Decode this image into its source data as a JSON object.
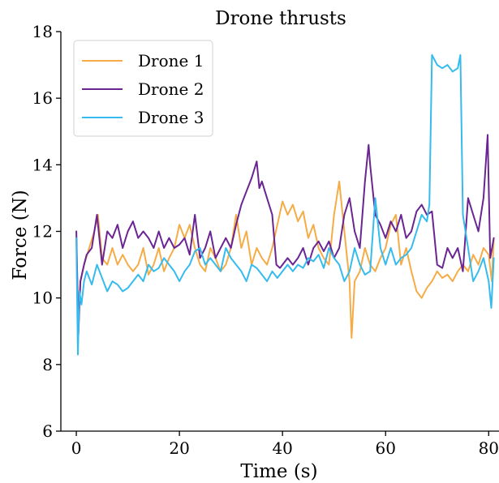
{
  "chart_data": {
    "type": "line",
    "title": "Drone thrusts",
    "xlabel": "Time (s)",
    "ylabel": "Force (N)",
    "xlim": [
      -3,
      82
    ],
    "ylim": [
      6,
      18
    ],
    "xticks": [
      0,
      20,
      40,
      60,
      80
    ],
    "yticks": [
      6,
      8,
      10,
      12,
      14,
      16,
      18
    ],
    "xtick_labels": [
      "0",
      "20",
      "40",
      "60",
      "80"
    ],
    "ytick_labels": [
      "6",
      "8",
      "10",
      "12",
      "14",
      "16",
      "18"
    ],
    "grid": false,
    "legend_position": "upper-left",
    "series": [
      {
        "name": "Drone 1",
        "color": "#f5ac46",
        "x": [
          0,
          0.4,
          0.8,
          1.5,
          2.5,
          3.5,
          4.2,
          5,
          6,
          7,
          8,
          9,
          10,
          11,
          12,
          13,
          14,
          15,
          16,
          17,
          18,
          19,
          20,
          21,
          22,
          23,
          24,
          25,
          26,
          27,
          28,
          29,
          30,
          31,
          32,
          33,
          34,
          35,
          36,
          37,
          38,
          39,
          40,
          41,
          42,
          43,
          44,
          45,
          46,
          47,
          48,
          49,
          50,
          51,
          52,
          53,
          53.4,
          54,
          55,
          56,
          57,
          58,
          59,
          60,
          61,
          62,
          63,
          64,
          65,
          66,
          67,
          68,
          69,
          70,
          71,
          72,
          73,
          74,
          75,
          76,
          77,
          78,
          79,
          80,
          80.6,
          81
        ],
        "values": [
          11.8,
          9.0,
          10.5,
          11.0,
          11.5,
          12.0,
          12.5,
          11.2,
          11.0,
          11.5,
          11.0,
          11.3,
          11.0,
          10.8,
          11.0,
          11.5,
          10.7,
          11.0,
          11.5,
          10.8,
          11.2,
          11.5,
          12.2,
          11.8,
          12.2,
          11.5,
          11.0,
          10.8,
          11.5,
          11.2,
          10.8,
          11.0,
          11.5,
          12.5,
          11.5,
          12.0,
          11.0,
          11.5,
          11.2,
          11.0,
          11.5,
          12.2,
          12.9,
          12.5,
          12.8,
          12.3,
          12.6,
          11.8,
          12.2,
          11.5,
          11.2,
          11.0,
          12.5,
          13.5,
          12.0,
          10.5,
          8.8,
          10.5,
          10.8,
          11.5,
          11.0,
          10.8,
          11.2,
          11.5,
          12.2,
          12.5,
          11.0,
          11.5,
          10.8,
          10.2,
          10.0,
          10.3,
          10.5,
          10.8,
          10.6,
          10.7,
          10.5,
          10.8,
          11.0,
          10.8,
          11.3,
          11.0,
          11.5,
          11.3,
          10.5,
          11.8
        ]
      },
      {
        "name": "Drone 2",
        "color": "#6a2593",
        "x": [
          0,
          0.4,
          0.8,
          1.5,
          2,
          3,
          4,
          5,
          6,
          7,
          8,
          9,
          10,
          11,
          12,
          13,
          14,
          15,
          16,
          17,
          18,
          19,
          20,
          21,
          22,
          23,
          24,
          25,
          26,
          27,
          28,
          29,
          30,
          31,
          32,
          33,
          34,
          35,
          35.5,
          36,
          37,
          38,
          38.8,
          39.5,
          40,
          41,
          42,
          43,
          44,
          45,
          46,
          47,
          48,
          49,
          50,
          51,
          52,
          53,
          54,
          55,
          56,
          56.7,
          57,
          58,
          59,
          60,
          61,
          62,
          63,
          64,
          65,
          66,
          67,
          68,
          69,
          70,
          71,
          72,
          73,
          74,
          75,
          76,
          77,
          78,
          79,
          79.8,
          80.3,
          81
        ],
        "values": [
          12.0,
          8.9,
          10.5,
          11.0,
          11.3,
          11.5,
          12.5,
          11.0,
          12.0,
          11.8,
          12.2,
          11.5,
          12.0,
          12.3,
          11.8,
          12.0,
          11.8,
          11.5,
          12.0,
          11.5,
          11.8,
          11.5,
          11.6,
          11.8,
          11.3,
          12.5,
          11.2,
          11.5,
          12.0,
          11.2,
          11.5,
          11.8,
          11.5,
          12.2,
          12.8,
          13.2,
          13.6,
          14.1,
          13.3,
          13.5,
          13.0,
          12.5,
          11.0,
          10.9,
          11.0,
          11.2,
          11.0,
          11.2,
          11.5,
          11.0,
          11.5,
          11.7,
          11.4,
          11.7,
          11.2,
          11.5,
          12.5,
          13.0,
          12.0,
          11.5,
          13.5,
          14.6,
          14.0,
          12.5,
          12.2,
          11.8,
          12.3,
          12.0,
          12.5,
          11.8,
          12.0,
          12.6,
          12.8,
          12.5,
          12.6,
          11.0,
          10.9,
          11.5,
          11.2,
          11.5,
          10.8,
          13.0,
          12.5,
          12.0,
          13.0,
          14.9,
          11.2,
          11.8
        ]
      },
      {
        "name": "Drone 3",
        "color": "#35bbee",
        "x": [
          0,
          0.3,
          0.6,
          1,
          1.5,
          2,
          3,
          4,
          5,
          6,
          7,
          8,
          9,
          10,
          11,
          12,
          13,
          14,
          15,
          16,
          17,
          18,
          19,
          20,
          21,
          22,
          23,
          24,
          25,
          26,
          27,
          28,
          29,
          30,
          31,
          32,
          33,
          34,
          35,
          36,
          37,
          38,
          39,
          40,
          41,
          42,
          43,
          44,
          45,
          46,
          47,
          48,
          49,
          50,
          51,
          52,
          53,
          54,
          55,
          56,
          57,
          58,
          59,
          60,
          61,
          62,
          63,
          64,
          65,
          66,
          67,
          68,
          68.5,
          69,
          70,
          71,
          72,
          73,
          74,
          74.5,
          75,
          76,
          77,
          78,
          79,
          80,
          80.5,
          81
        ],
        "values": [
          11.8,
          8.3,
          10.2,
          9.8,
          10.5,
          10.8,
          10.4,
          11.0,
          10.6,
          10.2,
          10.5,
          10.4,
          10.2,
          10.3,
          10.5,
          10.7,
          10.5,
          11.0,
          10.8,
          10.9,
          11.2,
          11.0,
          10.8,
          10.5,
          10.8,
          11.0,
          11.4,
          11.5,
          11.0,
          11.2,
          11.0,
          10.8,
          11.5,
          11.2,
          11.0,
          10.8,
          10.5,
          11.0,
          10.9,
          10.7,
          10.5,
          10.8,
          10.6,
          10.8,
          11.0,
          10.8,
          11.0,
          10.9,
          11.2,
          11.1,
          11.3,
          10.9,
          11.5,
          11.2,
          11.0,
          10.5,
          10.8,
          11.5,
          11.0,
          10.7,
          10.8,
          13.0,
          11.5,
          11.0,
          11.5,
          11.0,
          11.2,
          11.3,
          11.5,
          12.0,
          12.5,
          12.3,
          12.8,
          17.3,
          17.0,
          16.9,
          17.0,
          16.8,
          16.9,
          17.3,
          12.5,
          11.5,
          10.5,
          10.8,
          11.2,
          10.5,
          9.7,
          11.2
        ]
      }
    ]
  }
}
